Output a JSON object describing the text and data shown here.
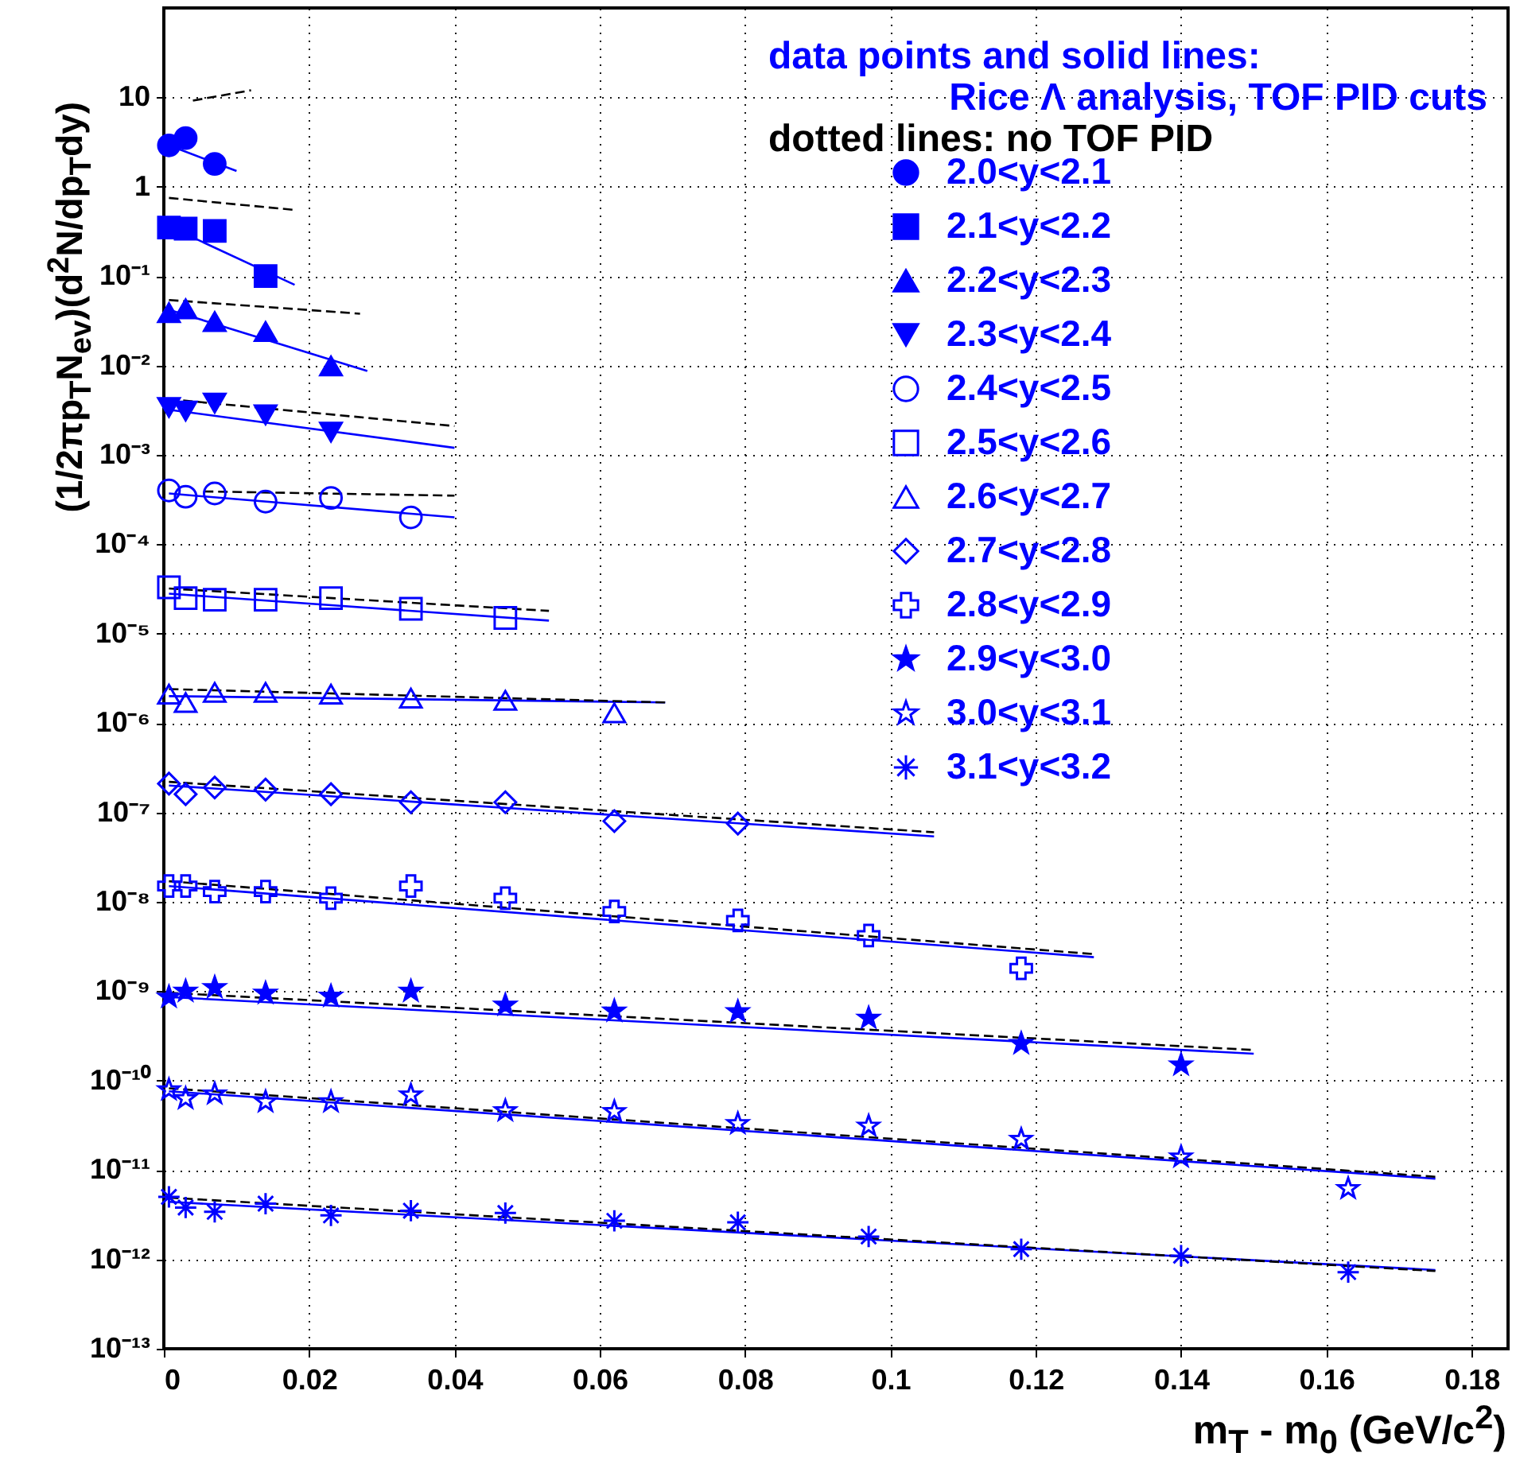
{
  "chart_data": {
    "type": "scatter",
    "xlabel": "m$_{T}$ - m$_{0}$ (GeV/c$^{2}$)",
    "ylabel": "(1/2πp$_{T}$N$_{ev}$)(d$^{2}$N/dp$_{T}$dy)",
    "annotations": [
      "data points and solid lines:",
      "Rice Λ analysis, TOF PID cuts",
      "dotted lines: no TOF PID"
    ],
    "xlim": [
      0,
      0.185
    ],
    "xticks": [
      0,
      0.02,
      0.04,
      0.06,
      0.08,
      0.1,
      0.12,
      0.14,
      0.16,
      0.18
    ],
    "ylim": [
      1e-13,
      100
    ],
    "log": true,
    "grid": true,
    "legend": "top right",
    "yticks": [
      {
        "value": 1e-13,
        "label": "10⁻¹³"
      },
      {
        "value": 1e-12,
        "label": "10⁻¹²"
      },
      {
        "value": 1e-11,
        "label": "10⁻¹¹"
      },
      {
        "value": 1e-10,
        "label": "10⁻¹⁰"
      },
      {
        "value": 1e-09,
        "label": "10⁻⁹"
      },
      {
        "value": 1e-08,
        "label": "10⁻⁸"
      },
      {
        "value": 1e-07,
        "label": "10⁻⁷"
      },
      {
        "value": 1e-06,
        "label": "10⁻⁶"
      },
      {
        "value": 1e-05,
        "label": "10⁻⁵"
      },
      {
        "value": 0.0001,
        "label": "10⁻⁴"
      },
      {
        "value": 0.001,
        "label": "10⁻³"
      },
      {
        "value": 0.01,
        "label": "10⁻²"
      },
      {
        "value": 0.1,
        "label": "10⁻¹"
      },
      1,
      10
    ],
    "series": [
      {
        "name": "2.0<y<2.1",
        "type": "scatter",
        "marker": "circle",
        "color": "#0000ff",
        "x": [
          0.0007,
          0.003,
          0.007
        ],
        "values": [
          2.9,
          3.5,
          1.8
        ]
      },
      {
        "name": "2.1<y<2.2",
        "type": "scatter",
        "marker": "square",
        "color": "#0000ff",
        "x": [
          0.0007,
          0.003,
          0.007,
          0.014
        ],
        "values": [
          0.35,
          0.34,
          0.32,
          0.1
        ]
      },
      {
        "name": "2.2<y<2.3",
        "type": "scatter",
        "marker": "triangle",
        "color": "#0000ff",
        "x": [
          0.0007,
          0.003,
          0.007,
          0.014,
          0.023
        ],
        "values": [
          0.039,
          0.043,
          0.031,
          0.024,
          0.0099
        ]
      },
      {
        "name": "2.3<y<2.4",
        "type": "scatter",
        "marker": "triangle-down",
        "color": "#0000ff",
        "x": [
          0.0007,
          0.003,
          0.007,
          0.014,
          0.023
        ],
        "values": [
          0.0034,
          0.0031,
          0.0038,
          0.0028,
          0.0018
        ]
      },
      {
        "name": "2.4<y<2.5",
        "type": "scatter",
        "marker": "circle-open",
        "color": "#0000ff",
        "x": [
          0.0007,
          0.003,
          0.007,
          0.014,
          0.023,
          0.034
        ],
        "values": [
          0.0004,
          0.00034,
          0.00037,
          0.0003,
          0.00033,
          0.0002
        ]
      },
      {
        "name": "2.5<y<2.6",
        "type": "scatter",
        "marker": "square-open",
        "color": "#0000ff",
        "x": [
          0.0007,
          0.003,
          0.007,
          0.014,
          0.023,
          0.034,
          0.047
        ],
        "values": [
          3.3e-05,
          2.5e-05,
          2.4e-05,
          2.4e-05,
          2.5e-05,
          1.9e-05,
          1.5e-05
        ]
      },
      {
        "name": "2.6<y<2.7",
        "type": "scatter",
        "marker": "triangle-open",
        "color": "#0000ff",
        "x": [
          0.0007,
          0.003,
          0.007,
          0.014,
          0.023,
          0.034,
          0.047,
          0.062
        ],
        "values": [
          2.1e-06,
          1.7e-06,
          2.2e-06,
          2.2e-06,
          2.1e-06,
          1.9e-06,
          1.8e-06,
          1.3e-06
        ]
      },
      {
        "name": "2.7<y<2.8",
        "type": "scatter",
        "marker": "diamond-open",
        "color": "#0000ff",
        "x": [
          0.0007,
          0.003,
          0.007,
          0.014,
          0.023,
          0.034,
          0.047,
          0.062,
          0.079
        ],
        "values": [
          2.1e-07,
          1.6e-07,
          1.9e-07,
          1.8e-07,
          1.6e-07,
          1.3e-07,
          1.3e-07,
          8e-08,
          7.5e-08
        ]
      },
      {
        "name": "2.8<y<2.9",
        "type": "scatter",
        "marker": "cross-open",
        "color": "#0000ff",
        "x": [
          0.0007,
          0.003,
          0.007,
          0.014,
          0.023,
          0.034,
          0.047,
          0.062,
          0.079,
          0.097,
          0.118
        ],
        "values": [
          1.5e-08,
          1.5e-08,
          1.3e-08,
          1.3e-08,
          1.1e-08,
          1.5e-08,
          1.1e-08,
          7.8e-09,
          6.2e-09,
          4.2e-09,
          1.8e-09
        ]
      },
      {
        "name": "2.9<y<3.0",
        "type": "scatter",
        "marker": "star",
        "color": "#0000ff",
        "x": [
          0.0007,
          0.003,
          0.007,
          0.014,
          0.023,
          0.034,
          0.047,
          0.062,
          0.079,
          0.097,
          0.118,
          0.14
        ],
        "values": [
          8.6e-10,
          1e-09,
          1.1e-09,
          9.5e-10,
          8.8e-10,
          1e-09,
          7e-10,
          6e-10,
          5.9e-10,
          5e-10,
          2.6e-10,
          1.5e-10
        ]
      },
      {
        "name": "3.0<y<3.1",
        "type": "scatter",
        "marker": "star-open",
        "color": "#0000ff",
        "x": [
          0.0007,
          0.003,
          0.007,
          0.014,
          0.023,
          0.034,
          0.047,
          0.062,
          0.079,
          0.097,
          0.118,
          0.14,
          0.163
        ],
        "values": [
          7.9e-11,
          6.3e-11,
          7.1e-11,
          5.8e-11,
          5.8e-11,
          6.9e-11,
          4.6e-11,
          4.5e-11,
          3.3e-11,
          3.1e-11,
          2.2e-11,
          1.4e-11,
          6.2e-12
        ]
      },
      {
        "name": "3.1<y<3.2",
        "type": "scatter",
        "marker": "cross",
        "color": "#0000ff",
        "x": [
          0.0007,
          0.003,
          0.007,
          0.014,
          0.023,
          0.034,
          0.047,
          0.062,
          0.079,
          0.097,
          0.118,
          0.14,
          0.163
        ],
        "values": [
          5e-12,
          3.8e-12,
          3.4e-12,
          4.2e-12,
          3.1e-12,
          3.5e-12,
          3.3e-12,
          2.7e-12,
          2.6e-12,
          1.8e-12,
          1.3e-12,
          1.1e-12,
          7.2e-13
        ]
      },
      {
        "type": "line",
        "line_style": "solid",
        "color": "#0000ff",
        "x": [
          0.0007,
          0.01
        ],
        "values": [
          2.9,
          1.5
        ]
      },
      {
        "type": "line",
        "line_style": "dashed",
        "color": "#000000",
        "x": [
          0.004,
          0.012
        ],
        "values": [
          9.2,
          12
        ]
      },
      {
        "type": "line",
        "line_style": "solid",
        "color": "#0000ff",
        "x": [
          0.0007,
          0.018
        ],
        "values": [
          0.36,
          0.08
        ]
      },
      {
        "type": "line",
        "line_style": "dashed",
        "color": "#000000",
        "x": [
          0.0007,
          0.018
        ],
        "values": [
          0.75,
          0.55
        ]
      },
      {
        "type": "line",
        "line_style": "solid",
        "color": "#0000ff",
        "x": [
          0.0007,
          0.028
        ],
        "values": [
          0.042,
          0.0087
        ]
      },
      {
        "type": "line",
        "line_style": "dashed",
        "color": "#000000",
        "x": [
          0.0007,
          0.027
        ],
        "values": [
          0.054,
          0.038
        ]
      },
      {
        "type": "line",
        "line_style": "solid",
        "color": "#0000ff",
        "x": [
          0.0007,
          0.04
        ],
        "values": [
          0.0032,
          0.0012
        ]
      },
      {
        "type": "line",
        "line_style": "dashed",
        "color": "#000000",
        "x": [
          0.0007,
          0.04
        ],
        "values": [
          0.0042,
          0.0021
        ]
      },
      {
        "type": "line",
        "line_style": "solid",
        "color": "#0000ff",
        "x": [
          0.0007,
          0.04
        ],
        "values": [
          0.00037,
          0.0002
        ]
      },
      {
        "type": "line",
        "line_style": "dashed",
        "color": "#000000",
        "x": [
          0.0055,
          0.04
        ],
        "values": [
          0.00039,
          0.00035
        ]
      },
      {
        "type": "line",
        "line_style": "solid",
        "color": "#0000ff",
        "x": [
          0.0007,
          0.053
        ],
        "values": [
          2.8e-05,
          1.4e-05
        ]
      },
      {
        "type": "line",
        "line_style": "dashed",
        "color": "#000000",
        "x": [
          0.0007,
          0.053
        ],
        "values": [
          3.2e-05,
          1.8e-05
        ]
      },
      {
        "type": "line",
        "line_style": "solid",
        "color": "#0000ff",
        "x": [
          0.0007,
          0.069
        ],
        "values": [
          2e-06,
          1.7e-06
        ]
      },
      {
        "type": "line",
        "line_style": "dashed",
        "color": "#000000",
        "x": [
          0.0007,
          0.069
        ],
        "values": [
          2.4e-06,
          1.7e-06
        ]
      },
      {
        "type": "line",
        "line_style": "solid",
        "color": "#0000ff",
        "x": [
          0.0007,
          0.106
        ],
        "values": [
          2e-07,
          5.4e-08
        ]
      },
      {
        "type": "line",
        "line_style": "dashed",
        "color": "#000000",
        "x": [
          0.0007,
          0.106
        ],
        "values": [
          2.2e-07,
          6e-08
        ]
      },
      {
        "type": "line",
        "line_style": "solid",
        "color": "#0000ff",
        "x": [
          0.0007,
          0.128
        ],
        "values": [
          1.5e-08,
          2.4e-09
        ]
      },
      {
        "type": "line",
        "line_style": "dashed",
        "color": "#000000",
        "x": [
          0.0007,
          0.128
        ],
        "values": [
          1.7e-08,
          2.6e-09
        ]
      },
      {
        "type": "line",
        "line_style": "solid",
        "color": "#0000ff",
        "x": [
          0.0007,
          0.15
        ],
        "values": [
          8.6e-10,
          2e-10
        ]
      },
      {
        "type": "line",
        "line_style": "dashed",
        "color": "#000000",
        "x": [
          0.0007,
          0.15
        ],
        "values": [
          9.6e-10,
          2.2e-10
        ]
      },
      {
        "type": "line",
        "line_style": "solid",
        "color": "#0000ff",
        "x": [
          0.0007,
          0.175
        ],
        "values": [
          7.6e-11,
          8e-12
        ]
      },
      {
        "type": "line",
        "line_style": "dashed",
        "color": "#000000",
        "x": [
          0.0007,
          0.175
        ],
        "values": [
          8.2e-11,
          8.4e-12
        ]
      },
      {
        "type": "line",
        "line_style": "solid",
        "color": "#0000ff",
        "x": [
          0.0007,
          0.175
        ],
        "values": [
          4.4e-12,
          7.6e-13
        ]
      },
      {
        "type": "line",
        "line_style": "dashed",
        "color": "#000000",
        "x": [
          0.0007,
          0.175
        ],
        "values": [
          4.9e-12,
          7.4e-13
        ]
      }
    ]
  }
}
